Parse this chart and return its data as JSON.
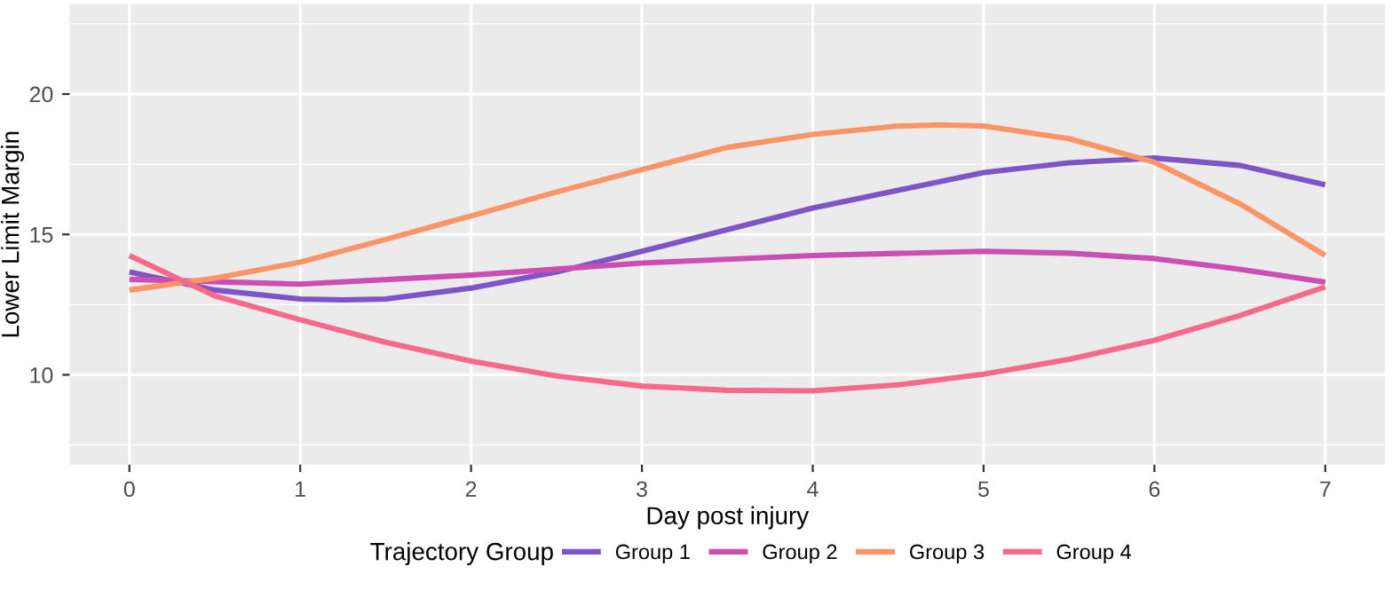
{
  "chart_data": {
    "type": "line",
    "xlabel": "Day post injury",
    "ylabel": "Lower Limit Margin",
    "legend_title": "Trajectory Group",
    "xlim": [
      -0.35,
      7.35
    ],
    "xticks": [
      0,
      1,
      2,
      3,
      4,
      5,
      6,
      7
    ],
    "ylim": [
      6.8,
      23.2
    ],
    "yticks": [
      10,
      15,
      20
    ],
    "grid": true,
    "legend": "bottom",
    "marker": "none",
    "line_style": "solid",
    "series": [
      {
        "name": "Group 1",
        "color": "#7e55c6",
        "x": [
          0,
          0.5,
          1,
          1.25,
          1.5,
          2,
          2.5,
          3,
          4,
          5,
          5.5,
          6,
          6.5,
          7
        ],
        "values": [
          13.66,
          13.02,
          12.7,
          12.67,
          12.7,
          13.09,
          13.66,
          14.4,
          15.94,
          17.2,
          17.55,
          17.72,
          17.46,
          16.77
        ]
      },
      {
        "name": "Group 2",
        "color": "#cb4fb2",
        "x": [
          0,
          1,
          2,
          3,
          4,
          5,
          5.5,
          6,
          6.5,
          7
        ],
        "values": [
          13.4,
          13.23,
          13.55,
          13.98,
          14.25,
          14.4,
          14.33,
          14.14,
          13.76,
          13.3
        ]
      },
      {
        "name": "Group 3",
        "color": "#fb9567",
        "x": [
          0,
          0.5,
          1,
          1.5,
          2,
          2.5,
          3,
          3.5,
          4,
          4.5,
          4.75,
          5,
          5.5,
          6,
          6.5,
          7
        ],
        "values": [
          13.02,
          13.44,
          14.01,
          14.82,
          15.66,
          16.51,
          17.31,
          18.1,
          18.56,
          18.86,
          18.9,
          18.86,
          18.41,
          17.57,
          16.09,
          14.25
        ]
      },
      {
        "name": "Group 4",
        "color": "#f7698b",
        "x": [
          0,
          0.5,
          1,
          1.5,
          2,
          2.5,
          3,
          3.5,
          4,
          4.5,
          5,
          5.5,
          6,
          6.5,
          7
        ],
        "values": [
          14.25,
          12.81,
          11.96,
          11.16,
          10.49,
          9.96,
          9.6,
          9.45,
          9.43,
          9.64,
          10.02,
          10.55,
          11.23,
          12.11,
          13.13
        ]
      }
    ]
  }
}
